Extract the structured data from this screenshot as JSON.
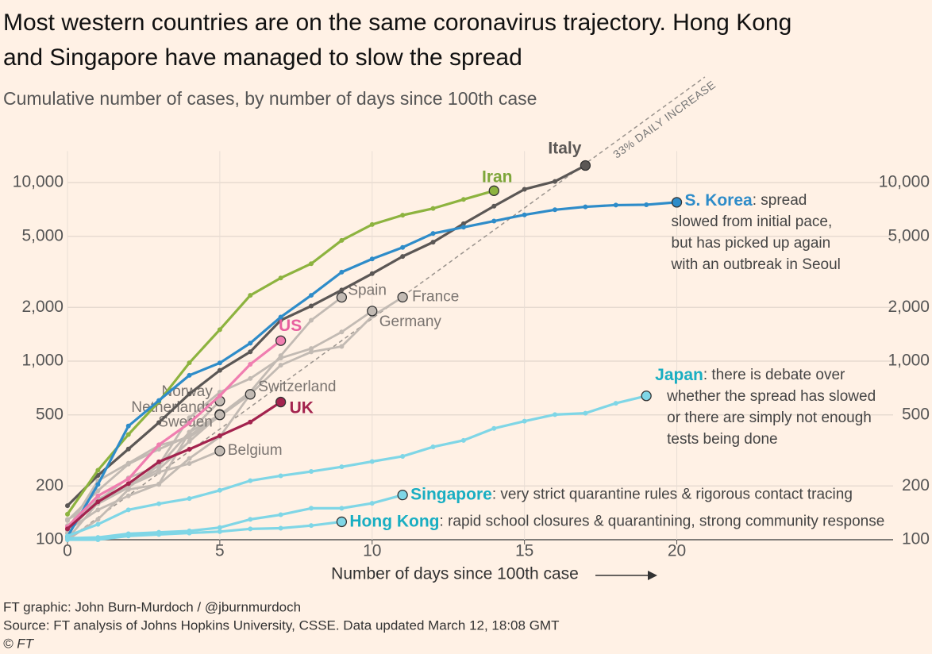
{
  "chart_data": {
    "type": "line",
    "title": [
      "Most western countries are on the same coronavirus trajectory. Hong Kong",
      "and Singapore have managed to slow the spread"
    ],
    "subtitle": "Cumulative number of cases, by number of days since 100th case",
    "x_label": "Number of days since 100th case",
    "log_scale": true,
    "grid": true,
    "x": [
      0,
      1,
      2,
      3,
      4,
      5,
      6,
      7,
      8,
      9,
      10,
      11,
      12,
      13,
      14,
      15,
      16,
      17,
      18,
      19,
      20
    ],
    "xlim": [
      0,
      27.1
    ],
    "xticks": [
      0,
      5,
      10,
      15,
      20
    ],
    "ylim": [
      100,
      15000
    ],
    "yticks": [
      100,
      200,
      500,
      {
        "value": 1000,
        "label": "1,000"
      },
      {
        "value": 2000,
        "label": "2,000"
      },
      {
        "value": 5000,
        "label": "5,000"
      },
      {
        "value": 10000,
        "label": "10,000"
      }
    ],
    "reference": {
      "label": "33% DAILY INCREASE",
      "daily_increase_pct": 33,
      "color": "#9a938d"
    },
    "series": [
      {
        "name": "Spain",
        "color": "#c2bab3",
        "label_color": "#7a7470",
        "values": [
          120,
          165,
          222,
          259,
          400,
          500,
          673,
          1073,
          1695,
          2277,
          null,
          null,
          null,
          null,
          null,
          null,
          null,
          null,
          null,
          null,
          null
        ]
      },
      {
        "name": "France",
        "color": "#c2bab3",
        "label_color": "#7a7470",
        "values": [
          100,
          130,
          191,
          204,
          285,
          377,
          653,
          949,
          1126,
          1209,
          1784,
          2281,
          null,
          null,
          null,
          null,
          null,
          null,
          null,
          null,
          null
        ]
      },
      {
        "name": "Germany",
        "color": "#c2bab3",
        "label_color": "#7a7470",
        "values": [
          130,
          159,
          196,
          262,
          482,
          670,
          799,
          1040,
          1176,
          1457,
          1908,
          null,
          null,
          null,
          null,
          null,
          null,
          null,
          null,
          null,
          null
        ]
      },
      {
        "name": "Switzerland",
        "color": "#c2bab3",
        "label_color": "#7a7470",
        "values": [
          114,
          214,
          268,
          337,
          374,
          491,
          652,
          null,
          null,
          null,
          null,
          null,
          null,
          null,
          null,
          null,
          null,
          null,
          null,
          null,
          null
        ]
      },
      {
        "name": "Norway",
        "color": "#c2bab3",
        "label_color": "#7a7470",
        "values": [
          113,
          147,
          176,
          205,
          400,
          598,
          null,
          null,
          null,
          null,
          null,
          null,
          null,
          null,
          null,
          null,
          null,
          null,
          null,
          null,
          null
        ]
      },
      {
        "name": "Netherlands",
        "color": "#c2bab3",
        "label_color": "#7a7470",
        "values": [
          128,
          188,
          265,
          321,
          382,
          503,
          null,
          null,
          null,
          null,
          null,
          null,
          null,
          null,
          null,
          null,
          null,
          null,
          null,
          null,
          null
        ]
      },
      {
        "name": "Sweden",
        "color": "#c2bab3",
        "label_color": "#7a7470",
        "values": [
          101,
          161,
          203,
          248,
          355,
          500,
          null,
          null,
          null,
          null,
          null,
          null,
          null,
          null,
          null,
          null,
          null,
          null,
          null,
          null,
          null
        ]
      },
      {
        "name": "Belgium",
        "color": "#c2bab3",
        "label_color": "#7a7470",
        "values": [
          109,
          169,
          200,
          239,
          267,
          314,
          null,
          null,
          null,
          null,
          null,
          null,
          null,
          null,
          null,
          null,
          null,
          null,
          null,
          null,
          null
        ]
      },
      {
        "name": "Italy",
        "color": "#5b5755",
        "label_color": "#5b5755",
        "values": [
          155,
          229,
          322,
          453,
          655,
          888,
          1128,
          1694,
          2036,
          2502,
          3089,
          3858,
          4636,
          5883,
          7375,
          9172,
          10149,
          12462,
          null,
          null,
          null
        ]
      },
      {
        "name": "Iran",
        "color": "#8db33f",
        "label_color": "#7ea63a",
        "values": [
          139,
          245,
          388,
          593,
          978,
          1501,
          2336,
          2922,
          3513,
          4747,
          5823,
          6566,
          7161,
          8042,
          9000,
          null,
          null,
          null,
          null,
          null,
          null
        ]
      },
      {
        "name": "S. Korea",
        "color": "#2e8cc9",
        "label_color": "#2e8cc9",
        "note": [
          ": spread",
          "slowed from initial pace,",
          "but has picked up again",
          "with an outbreak in Seoul"
        ],
        "values": [
          104,
          204,
          433,
          602,
          833,
          977,
          1261,
          1766,
          2337,
          3150,
          3736,
          4335,
          5186,
          5621,
          6088,
          6593,
          7041,
          7314,
          7478,
          7513,
          7755
        ]
      },
      {
        "name": "US",
        "color": "#f07eb0",
        "label_color": "#e8609f",
        "values": [
          118,
          176,
          219,
          340,
          450,
          640,
          960,
          1302,
          null,
          null,
          null,
          null,
          null,
          null,
          null,
          null,
          null,
          null,
          null,
          null,
          null
        ]
      },
      {
        "name": "UK",
        "color": "#a3234e",
        "label_color": "#a3234e",
        "values": [
          115,
          163,
          206,
          273,
          321,
          382,
          456,
          590,
          null,
          null,
          null,
          null,
          null,
          null,
          null,
          null,
          null,
          null,
          null,
          null,
          null
        ]
      },
      {
        "name": "Japan",
        "color": "#7fd6e6",
        "label_color": "#19aec2",
        "note": [
          ": there is debate over",
          "whether the spread has slowed",
          "or there are simply not enough",
          "tests being done"
        ],
        "values": [
          105,
          122,
          147,
          159,
          170,
          189,
          214,
          228,
          241,
          256,
          274,
          293,
          331,
          360,
          420,
          461,
          502,
          511,
          581,
          639,
          null
        ]
      },
      {
        "name": "Singapore",
        "color": "#7fd6e6",
        "label_color": "#19aec2",
        "note": [
          ": very strict quarantine rules & rigorous contact tracing"
        ],
        "values": [
          102,
          103,
          108,
          110,
          112,
          117,
          130,
          138,
          150,
          150,
          160,
          178,
          null,
          null,
          null,
          null,
          null,
          null,
          null,
          null,
          null
        ]
      },
      {
        "name": "Hong Kong",
        "color": "#7fd6e6",
        "label_color": "#19aec2",
        "note": [
          ": rapid school closures & quarantining, strong community response"
        ],
        "values": [
          100,
          100,
          105,
          107,
          109,
          111,
          115,
          116,
          120,
          126,
          null,
          null,
          null,
          null,
          null,
          null,
          null,
          null,
          null,
          null,
          null
        ]
      }
    ],
    "footer": [
      "FT graphic: John Burn-Murdoch / @jburnmurdoch",
      "Source: FT analysis of Johns Hopkins University, CSSE. Data updated March 12, 18:08 GMT",
      "© FT"
    ]
  }
}
